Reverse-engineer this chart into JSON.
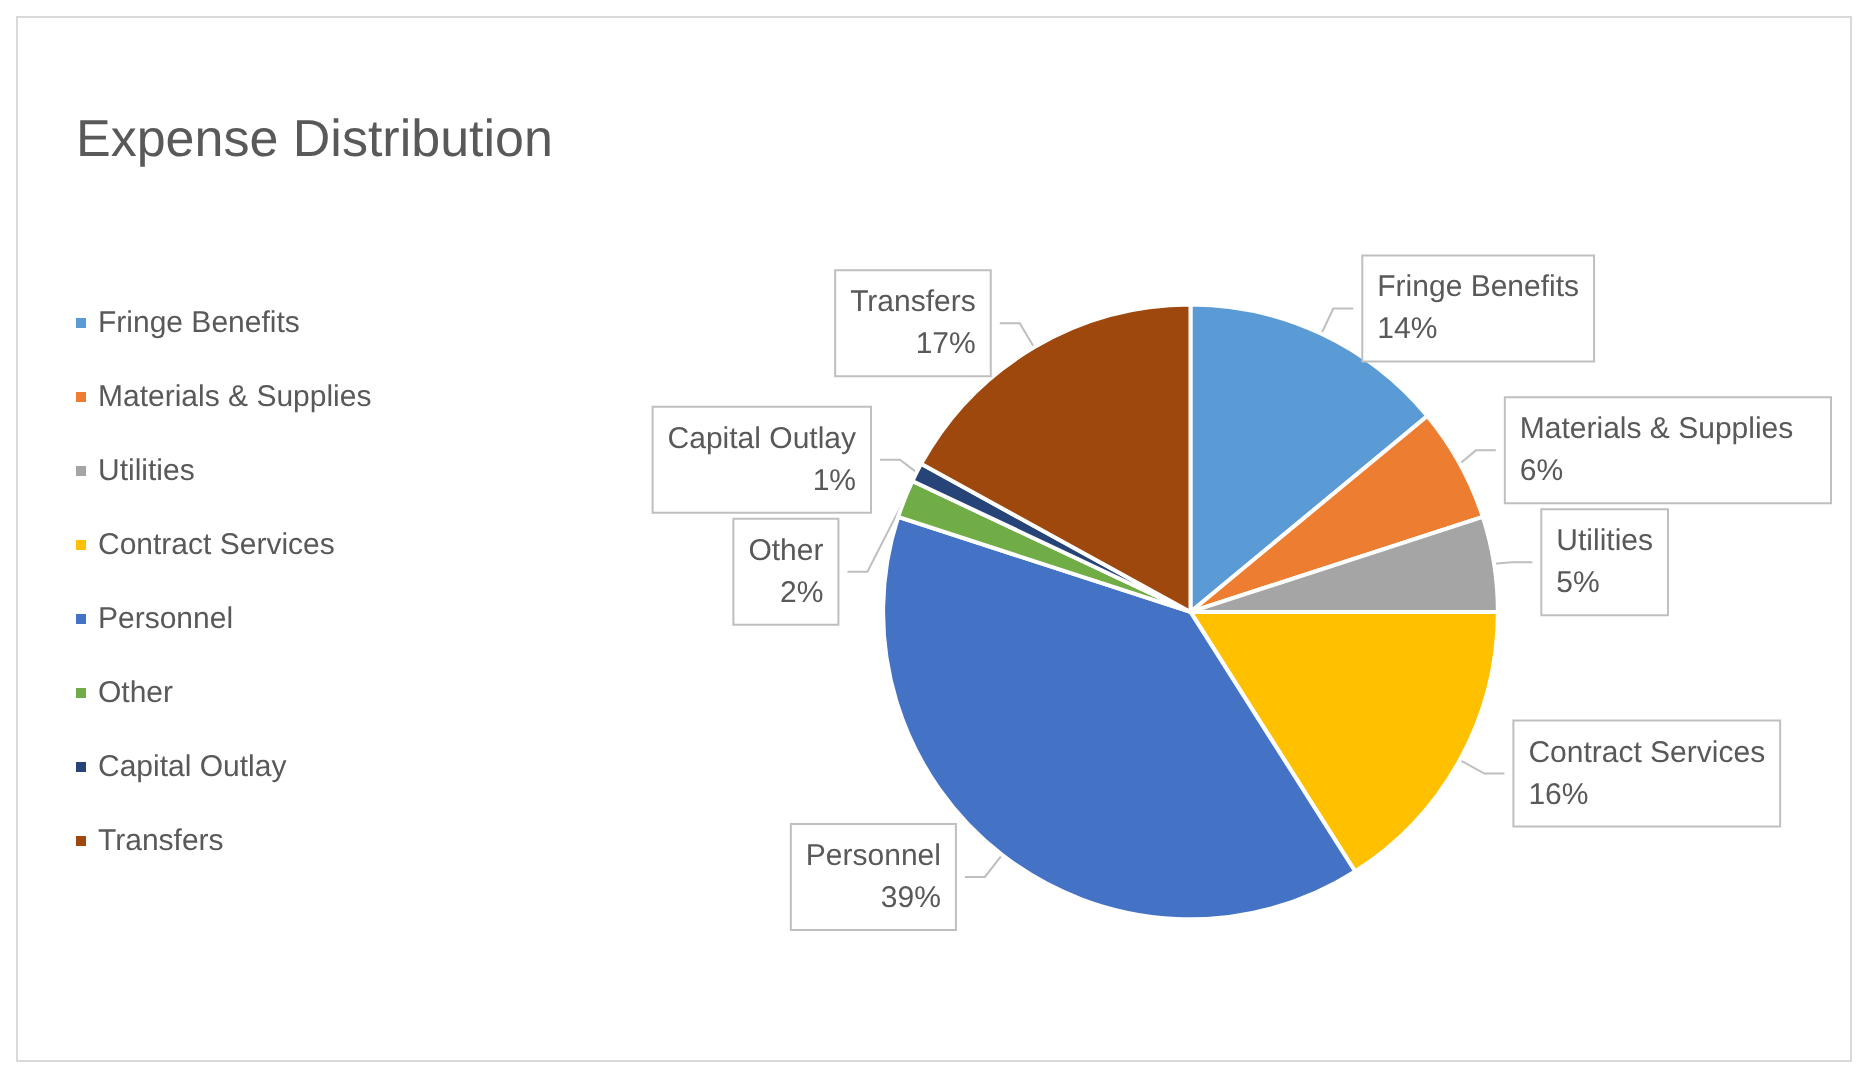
{
  "chart_data": {
    "type": "pie",
    "title": "Expense Distribution",
    "categories": [
      "Fringe Benefits",
      "Materials & Supplies",
      "Utilities",
      "Contract Services",
      "Personnel",
      "Other",
      "Capital Outlay",
      "Transfers"
    ],
    "values": [
      14,
      6,
      5,
      16,
      39,
      2,
      1,
      17
    ],
    "value_labels": [
      "14%",
      "6%",
      "5%",
      "16%",
      "39%",
      "2%",
      "1%",
      "17%"
    ],
    "colors": [
      "#5b9bd5",
      "#ed7d31",
      "#a5a5a5",
      "#ffc000",
      "#4472c4",
      "#70ad47",
      "#264478",
      "#9e480e"
    ],
    "legend": "left"
  }
}
